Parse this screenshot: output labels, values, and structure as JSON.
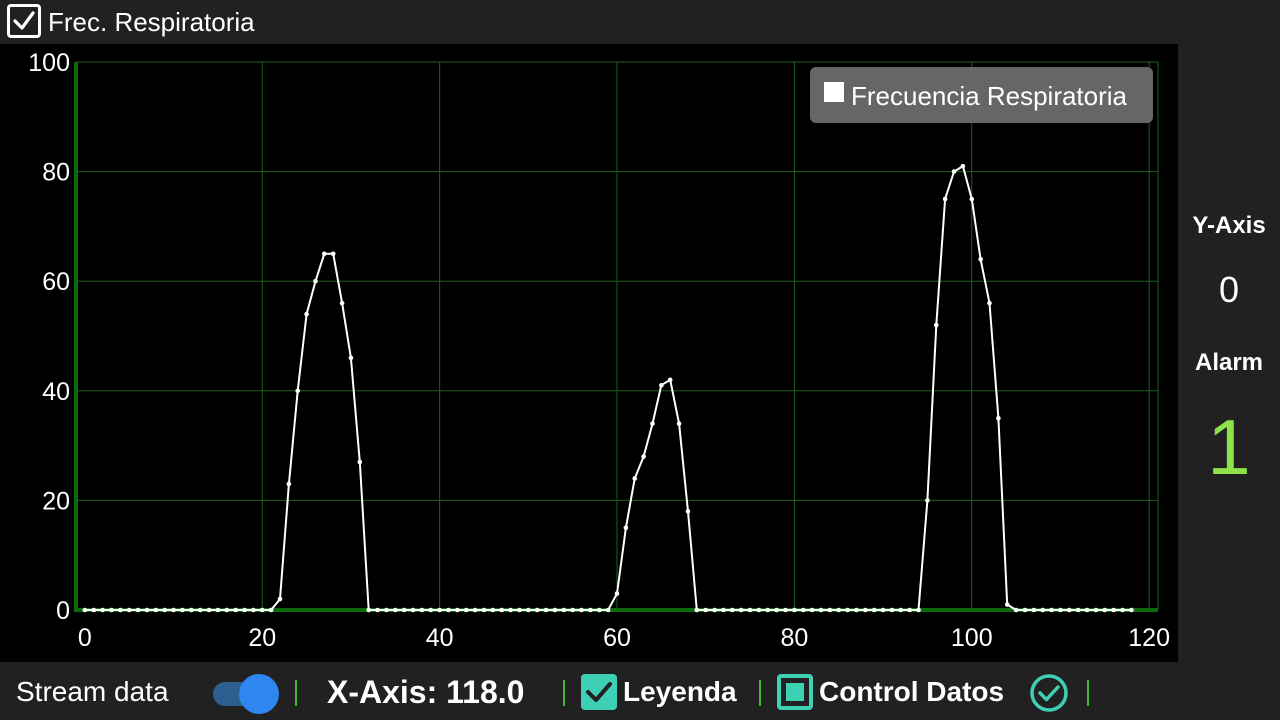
{
  "header": {
    "title": "Frec. Respiratoria",
    "checked": true
  },
  "chart_data": {
    "type": "line",
    "series": [
      {
        "name": "Frecuencia Respiratoria",
        "x": [
          0,
          1,
          2,
          3,
          4,
          5,
          6,
          7,
          8,
          9,
          10,
          11,
          12,
          13,
          14,
          15,
          16,
          17,
          18,
          19,
          20,
          21,
          22,
          23,
          24,
          25,
          26,
          27,
          28,
          29,
          30,
          31,
          32,
          33,
          34,
          35,
          36,
          37,
          38,
          39,
          40,
          41,
          42,
          43,
          44,
          45,
          46,
          47,
          48,
          49,
          50,
          51,
          52,
          53,
          54,
          55,
          56,
          57,
          58,
          59,
          60,
          61,
          62,
          63,
          64,
          65,
          66,
          67,
          68,
          69,
          70,
          71,
          72,
          73,
          74,
          75,
          76,
          77,
          78,
          79,
          80,
          81,
          82,
          83,
          84,
          85,
          86,
          87,
          88,
          89,
          90,
          91,
          92,
          93,
          94,
          95,
          96,
          97,
          98,
          99,
          100,
          101,
          102,
          103,
          104,
          105,
          106,
          107,
          108,
          109,
          110,
          111,
          112,
          113,
          114,
          115,
          116,
          117,
          118
        ],
        "y": [
          0,
          0,
          0,
          0,
          0,
          0,
          0,
          0,
          0,
          0,
          0,
          0,
          0,
          0,
          0,
          0,
          0,
          0,
          0,
          0,
          0,
          0,
          2,
          23,
          40,
          54,
          60,
          65,
          65,
          56,
          46,
          27,
          0,
          0,
          0,
          0,
          0,
          0,
          0,
          0,
          0,
          0,
          0,
          0,
          0,
          0,
          0,
          0,
          0,
          0,
          0,
          0,
          0,
          0,
          0,
          0,
          0,
          0,
          0,
          0,
          3,
          15,
          24,
          28,
          34,
          41,
          42,
          34,
          18,
          0,
          0,
          0,
          0,
          0,
          0,
          0,
          0,
          0,
          0,
          0,
          0,
          0,
          0,
          0,
          0,
          0,
          0,
          0,
          0,
          0,
          0,
          0,
          0,
          0,
          0,
          20,
          52,
          75,
          80,
          81,
          75,
          64,
          56,
          35,
          1,
          0,
          0,
          0,
          0,
          0,
          0,
          0,
          0,
          0,
          0,
          0,
          0,
          0,
          0
        ]
      }
    ],
    "xlim": [
      -1,
      121
    ],
    "ylim": [
      0,
      100
    ],
    "x_ticks": [
      0,
      20,
      40,
      60,
      80,
      100,
      120
    ],
    "y_ticks": [
      0,
      20,
      40,
      60,
      80,
      100
    ],
    "grid": true,
    "legend_position": "top-right",
    "colors": {
      "line": "#ffffff",
      "grid": "#1d5f1d",
      "axis": "#0d6b0d",
      "background": "#000000"
    }
  },
  "side": {
    "y_axis_label": "Y-Axis",
    "y_axis_value": "0",
    "alarm_label": "Alarm",
    "alarm_value": "1",
    "alarm_color": "#8ee24a"
  },
  "bottom": {
    "stream_label": "Stream data",
    "stream_on": true,
    "x_axis_text": "X-Axis: 118.0",
    "legend_label": "Leyenda",
    "legend_checked": true,
    "control_label": "Control Datos",
    "control_icon": "check-circle-icon",
    "accent_color": "#3ed0b4",
    "separator_color": "#3dbb2f"
  }
}
